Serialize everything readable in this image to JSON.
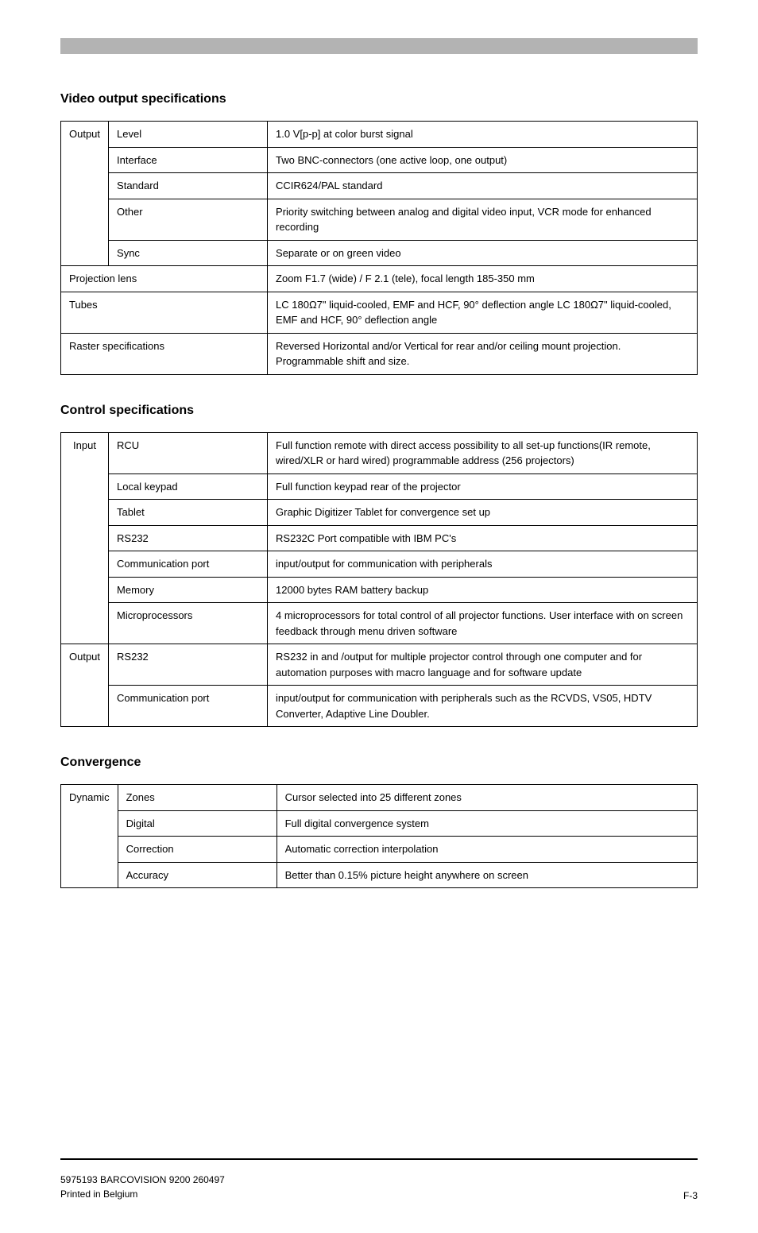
{
  "sections": [
    {
      "heading": "Video output specifications",
      "group1_label": "Output",
      "rows1": [
        {
          "label": "Level",
          "value": "1.0 V[p-p] at color burst signal"
        },
        {
          "label": "Interface",
          "value": "Two BNC-connectors (one active loop, one output)"
        },
        {
          "label": "Standard",
          "value": "CCIR624/PAL standard"
        },
        {
          "label": "Other",
          "value": "Priority switching between analog and digital video input, VCR mode for enhanced recording"
        },
        {
          "label": "Sync",
          "value": "Separate or on green video"
        }
      ],
      "rows2": [
        {
          "label": "Projection lens",
          "value": "Zoom F1.7 (wide) / F 2.1 (tele), focal length 185-350 mm"
        },
        {
          "label": "Tubes",
          "value": "LC 180Ω7\" liquid-cooled, EMF and HCF, 90° deflection angle LC 180Ω7\" liquid-cooled, EMF and HCF, 90° deflection angle"
        },
        {
          "label": "Raster specifications",
          "value": "Reversed Horizontal and/or Vertical for rear and/or ceiling mount projection. Programmable shift and size."
        }
      ]
    },
    {
      "heading": "Control specifications",
      "group1_label": "Input",
      "rows1": [
        {
          "label": "RCU",
          "value": "Full function remote with direct access possibility to all set-up functions(IR remote, wired/XLR or hard wired) programmable address (256 projectors)"
        },
        {
          "label": "Local keypad",
          "value": "Full function keypad rear of the projector"
        },
        {
          "label": "Tablet",
          "value": "Graphic Digitizer Tablet for convergence set up"
        },
        {
          "label": "RS232",
          "value": "RS232C Port compatible with IBM PC's"
        },
        {
          "label": "Communication port",
          "value": "input/output for communication with peripherals"
        },
        {
          "label": "Memory",
          "value": "12000 bytes RAM battery backup"
        },
        {
          "label": "Microprocessors",
          "value": "4 microprocessors for total control of all projector functions. User interface with on screen feedback through menu driven software"
        }
      ],
      "group2_label": "Output",
      "rows2": [
        {
          "label": "RS232",
          "value": "RS232 in and /output for multiple projector control through one computer and for automation purposes with macro language and for software update"
        },
        {
          "label": "Communication port",
          "value": "input/output for communication with peripherals such as the RCVDS, VS05, HDTV Converter, Adaptive Line Doubler."
        }
      ]
    },
    {
      "heading": "Convergence",
      "group1_label": "Dynamic",
      "rows1": [
        {
          "label": "Zones",
          "value": "Cursor selected into 25 different zones"
        },
        {
          "label": "Digital",
          "value": "Full digital convergence system"
        },
        {
          "label": "Correction",
          "value": "Automatic correction interpolation"
        },
        {
          "label": "Accuracy",
          "value": "Better than 0.15% picture height anywhere on screen"
        }
      ]
    }
  ],
  "footer": {
    "left_line1": "5975193 BARCOVISION 9200 260497",
    "left_line2": "Printed in Belgium",
    "right": "F-3"
  }
}
